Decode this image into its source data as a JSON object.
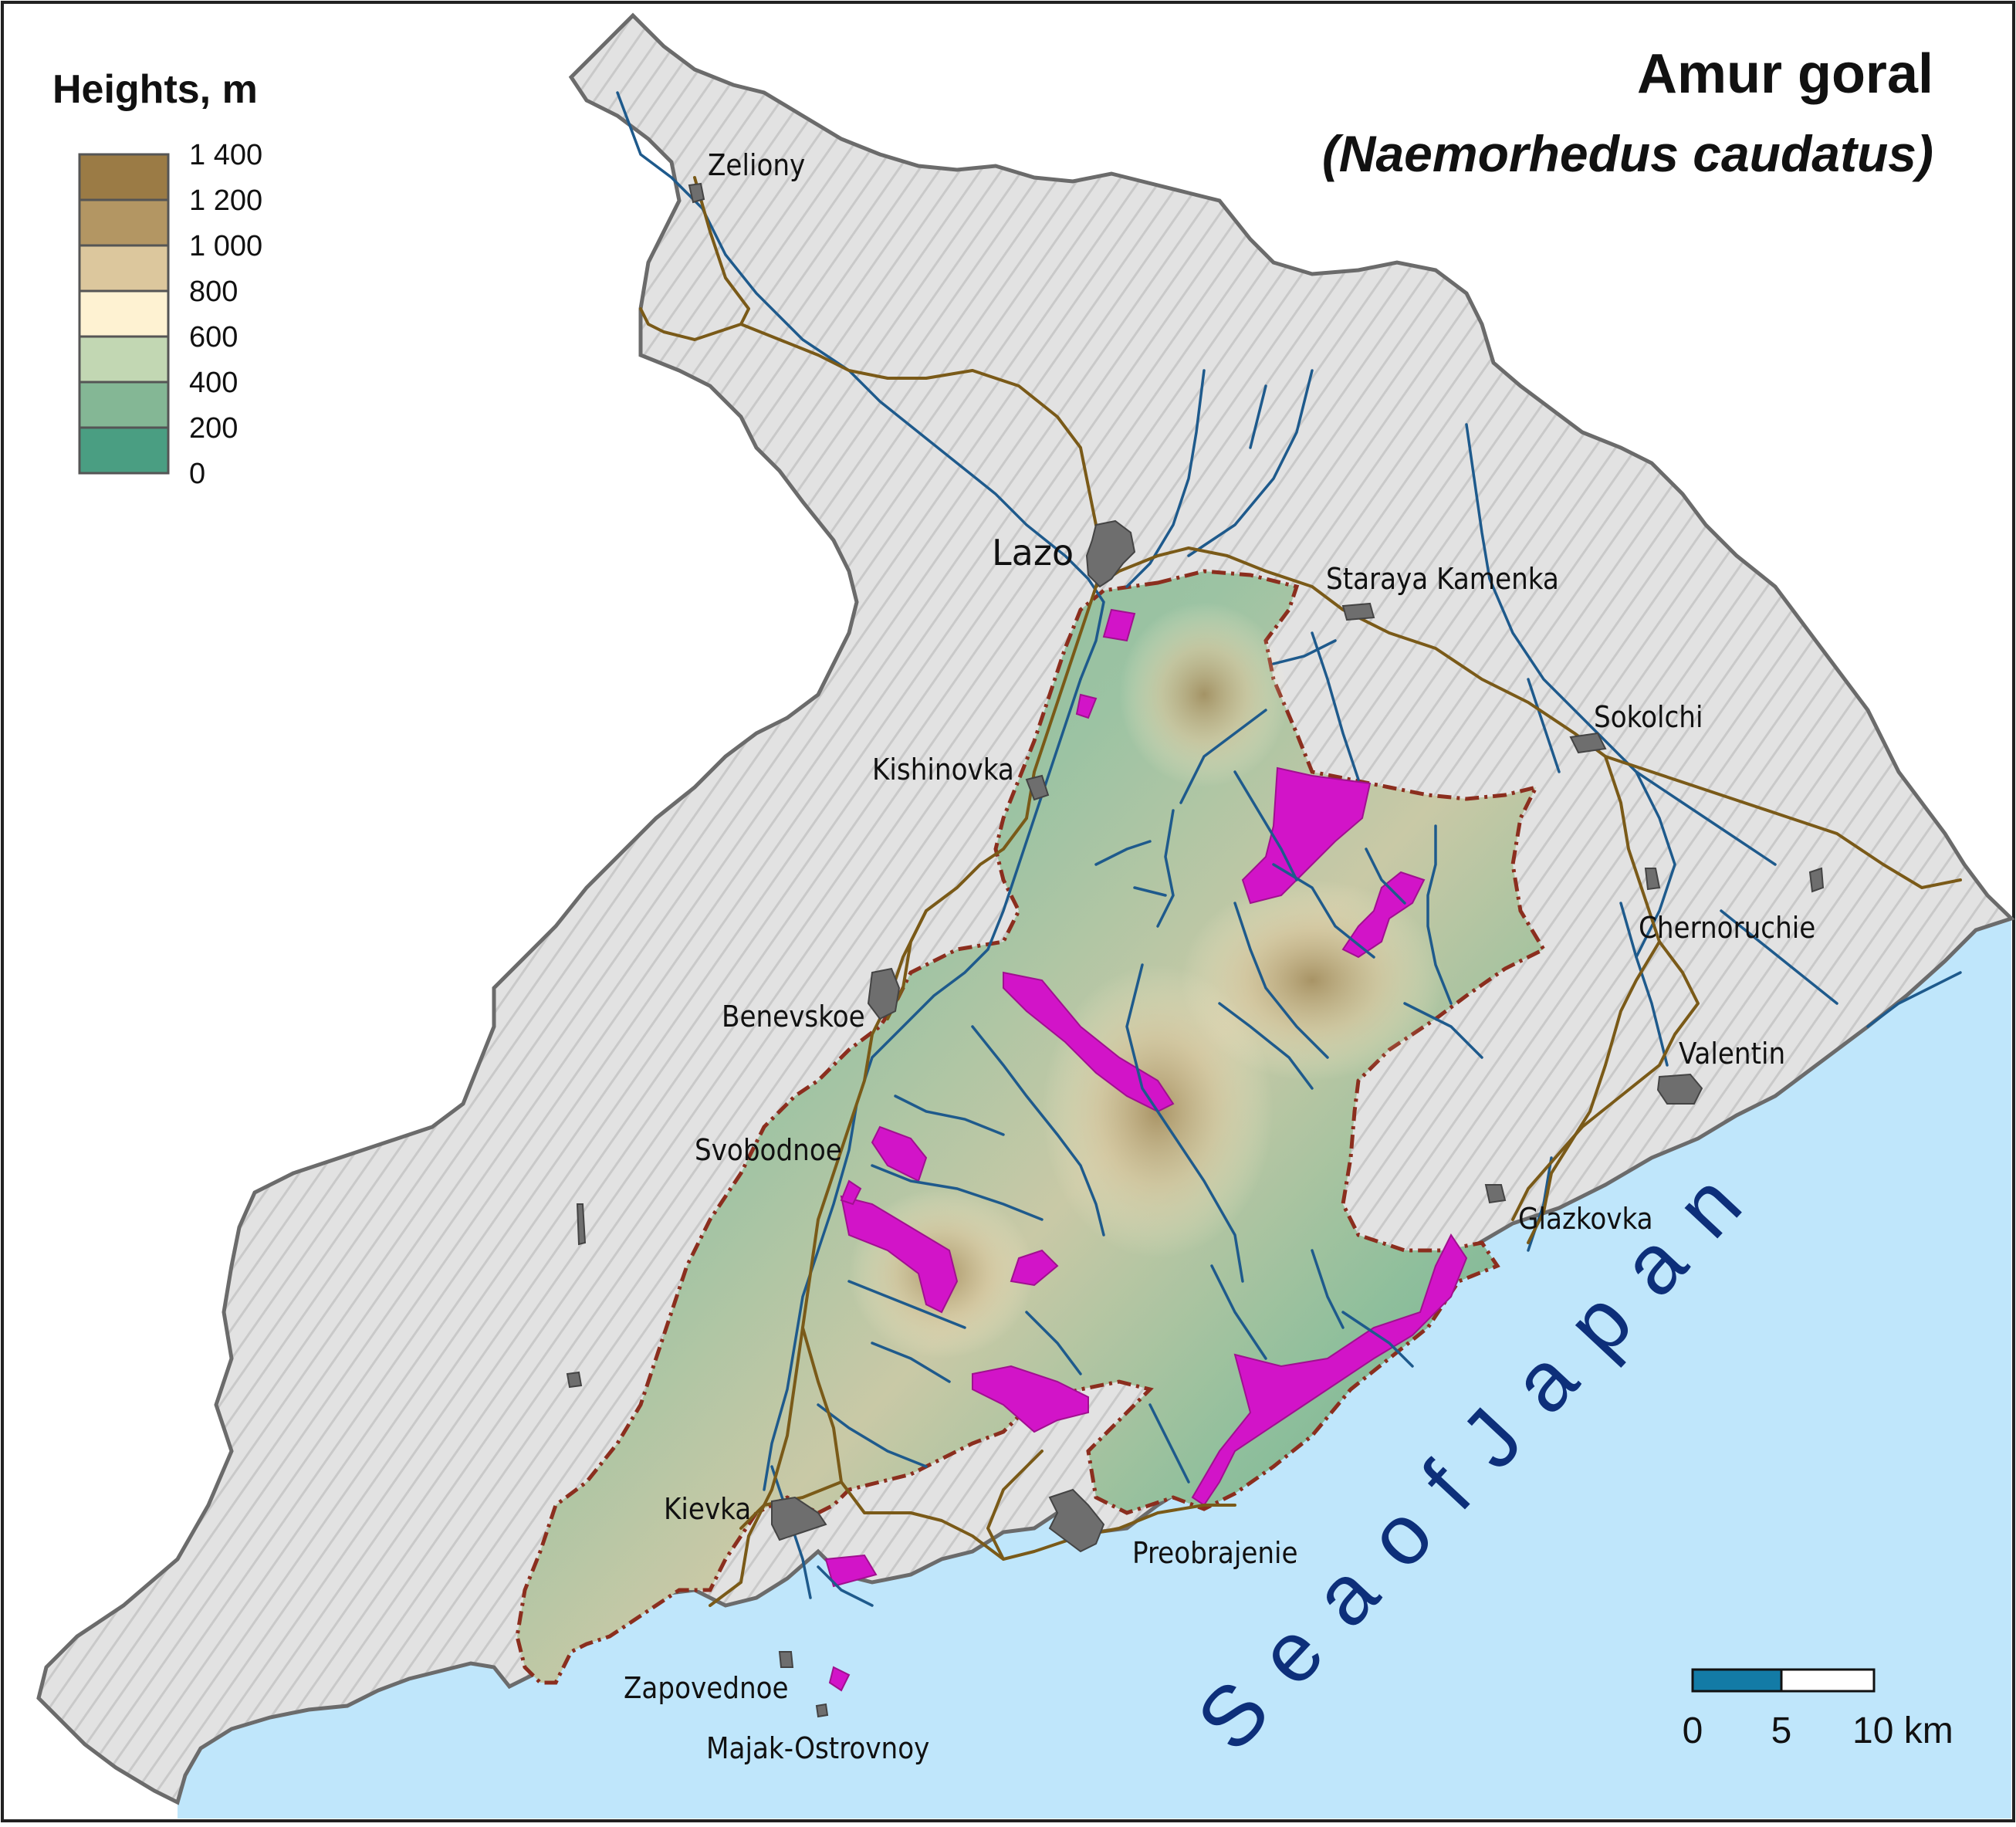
{
  "title": "Amur goral",
  "subtitle": "(Naemorhedus caudatus)",
  "legend": {
    "title": "Heights, m",
    "classes": [
      {
        "label": "1 400",
        "color": "#9b7b45"
      },
      {
        "label": "1 200",
        "color": "#b39663"
      },
      {
        "label": "1 000",
        "color": "#dcc79d"
      },
      {
        "label": "800",
        "color": "#fef2d2"
      },
      {
        "label": "600",
        "color": "#c2d7b3"
      },
      {
        "label": "400",
        "color": "#84b795"
      },
      {
        "label": "200",
        "color": "#4a9e82"
      },
      {
        "label": "0",
        "color": null
      }
    ]
  },
  "settlements": [
    {
      "name": "Zeliony"
    },
    {
      "name": "Lazo"
    },
    {
      "name": "Staraya  Kamenka"
    },
    {
      "name": "Sokolchi"
    },
    {
      "name": "Kishinovka"
    },
    {
      "name": "Chernoruchie"
    },
    {
      "name": "Benevskoe"
    },
    {
      "name": "Valentin"
    },
    {
      "name": "Svobodnoe"
    },
    {
      "name": "Glazkovka"
    },
    {
      "name": "Kievka"
    },
    {
      "name": "Preobrajenie"
    },
    {
      "name": "Zapovednoe"
    },
    {
      "name": "Majak-Ostrovnoy"
    }
  ],
  "sea": {
    "name": "S e a   o f   J a p a n"
  },
  "scale_bar": {
    "labels": [
      "0",
      "5",
      "10 km"
    ]
  },
  "colors": {
    "land": "#dcdcdc",
    "sea": "#bfe6fb",
    "reserve_fill": "#6fa993",
    "habitat": "#d214c8",
    "river": "#1e5a8c",
    "road": "#7a5a18",
    "boundary": "#8b2e1e",
    "settlement": "#6e6e6e",
    "scale_dark": "#137ba6"
  }
}
